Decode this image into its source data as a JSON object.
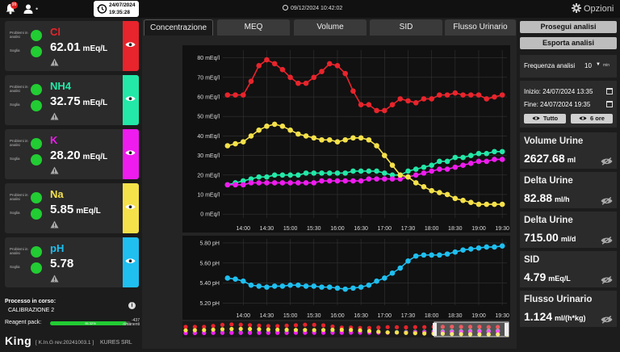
{
  "topbar": {
    "notification_count": "99",
    "user_dot": "•",
    "clock_date": "24/07/2024",
    "clock_time": "19:35:28",
    "center_datetime": "09/12/2024 10:42:02",
    "options_label": "Opzioni"
  },
  "ions": [
    {
      "name": "Cl",
      "value": "62.01",
      "unit": "mEq/L",
      "color": "#e8242c",
      "label_problems": "Problemi in analisi",
      "label_threshold": "Soglia"
    },
    {
      "name": "NH4",
      "value": "32.75",
      "unit": "mEq/L",
      "color": "#23e8a8",
      "label_problems": "Problemi in analisi",
      "label_threshold": "Soglia"
    },
    {
      "name": "K",
      "value": "28.20",
      "unit": "mEq/L",
      "color": "#ee1cee",
      "label_problems": "Problemi in analisi",
      "label_threshold": "Soglia"
    },
    {
      "name": "Na",
      "value": "5.85",
      "unit": "mEq/L",
      "color": "#f5e14a",
      "label_problems": "Problemi in analisi",
      "label_threshold": "Soglia"
    },
    {
      "name": "pH",
      "value": "5.78",
      "unit": "",
      "color": "#1fbff0",
      "label_problems": "Problemi in analisi",
      "label_threshold": "Soglia"
    }
  ],
  "process": {
    "title": "Processo in corso:",
    "value": "CALIBRAZIONE 2",
    "reagent_label": "Reagent pack:",
    "reagent_pct": "95.32%",
    "reagent_fraction": 0.9532,
    "reagent_remaining_num": "-437",
    "reagent_remaining_label": "rimanenti"
  },
  "footer": {
    "logo_main": "K",
    "logo_accent": "ing",
    "version": "[ K.In.G rev.20241003.1 ]",
    "company": "KURES SRL"
  },
  "tabs": [
    {
      "label": "Concentrazione",
      "active": true
    },
    {
      "label": "MEQ",
      "active": false
    },
    {
      "label": "Volume",
      "active": false
    },
    {
      "label": "SID",
      "active": false
    },
    {
      "label": "Flusso Urinario",
      "active": false
    }
  ],
  "right": {
    "btn_continue": "Prosegui analisi",
    "btn_export": "Esporta analisi",
    "freq_label": "Frequenza analisi",
    "freq_value": "10",
    "freq_unit": "min",
    "start_label": "Inizio:",
    "start_value": "24/07/2024 13:35",
    "end_label": "Fine:",
    "end_value": "24/07/2024 19:35",
    "btn_all": "Tutto",
    "btn_6h": "6 ore",
    "metrics": [
      {
        "title": "Volume Urine",
        "value": "2627.68",
        "unit": "ml"
      },
      {
        "title": "Delta Urine",
        "value": "82.88",
        "unit": "ml/h"
      },
      {
        "title": "Delta Urine",
        "value": "715.00",
        "unit": "ml/d"
      },
      {
        "title": "SID",
        "value": "4.79",
        "unit": "mEq/L"
      },
      {
        "title": "Flusso Urinario",
        "value": "1.124",
        "unit": "ml/(h*kg)"
      }
    ]
  },
  "chart_data": [
    {
      "type": "line",
      "x": [
        "13:40",
        "13:50",
        "14:00",
        "14:10",
        "14:20",
        "14:30",
        "14:40",
        "14:50",
        "15:00",
        "15:10",
        "15:20",
        "15:30",
        "15:40",
        "15:50",
        "16:00",
        "16:10",
        "16:20",
        "16:30",
        "16:40",
        "16:50",
        "17:00",
        "17:10",
        "17:20",
        "17:30",
        "17:40",
        "17:50",
        "18:00",
        "18:10",
        "18:20",
        "18:30",
        "18:40",
        "18:50",
        "19:00",
        "19:10",
        "19:20",
        "19:30"
      ],
      "x_ticks": [
        "14:00",
        "14:30",
        "15:00",
        "15:30",
        "16:00",
        "16:30",
        "17:00",
        "17:30",
        "18:00",
        "18:30",
        "19:00",
        "19:30"
      ],
      "y_ticks": [
        "0 mEq/l",
        "10 mEq/l",
        "20 mEq/l",
        "30 mEq/l",
        "40 mEq/l",
        "50 mEq/l",
        "60 mEq/l",
        "70 mEq/l",
        "80 mEq/l"
      ],
      "ylim": [
        -2,
        84
      ],
      "grid": true,
      "series": [
        {
          "name": "Cl",
          "color": "#e8242c",
          "values": [
            61,
            61,
            61,
            68,
            76,
            79,
            77,
            74,
            70,
            67,
            67,
            70,
            73,
            77,
            76,
            72,
            63,
            56,
            56,
            53,
            53,
            56,
            59,
            58,
            57,
            59,
            59,
            61,
            61,
            62,
            61,
            61,
            61,
            59,
            60,
            61
          ]
        },
        {
          "name": "NH4",
          "color": "#23e8a8",
          "values": [
            15,
            16,
            17,
            18,
            19,
            19,
            20,
            20,
            20,
            20,
            21,
            21,
            21,
            21,
            21,
            21,
            22,
            22,
            22,
            22,
            21,
            20,
            20,
            22,
            23,
            24,
            25,
            27,
            27,
            29,
            29,
            30,
            31,
            31,
            32,
            32
          ]
        },
        {
          "name": "K",
          "color": "#ee1cee",
          "values": [
            15,
            15,
            15,
            16,
            16,
            16,
            16,
            16,
            16,
            16,
            16,
            16,
            17,
            17,
            17,
            17,
            17,
            17,
            18,
            18,
            18,
            18,
            18,
            19,
            20,
            21,
            22,
            23,
            23,
            24,
            25,
            26,
            27,
            27,
            28,
            28
          ]
        },
        {
          "name": "Na",
          "color": "#f5e14a",
          "values": [
            35,
            36,
            37,
            40,
            43,
            45,
            46,
            45,
            43,
            41,
            40,
            39,
            38,
            38,
            37,
            38,
            39,
            39,
            38,
            35,
            30,
            25,
            20,
            19,
            16,
            14,
            12,
            11,
            10,
            8,
            7,
            6,
            5,
            5,
            5,
            5
          ]
        }
      ]
    },
    {
      "type": "line",
      "x": [
        "13:40",
        "13:50",
        "14:00",
        "14:10",
        "14:20",
        "14:30",
        "14:40",
        "14:50",
        "15:00",
        "15:10",
        "15:20",
        "15:30",
        "15:40",
        "15:50",
        "16:00",
        "16:10",
        "16:20",
        "16:30",
        "16:40",
        "16:50",
        "17:00",
        "17:10",
        "17:20",
        "17:30",
        "17:40",
        "17:50",
        "18:00",
        "18:10",
        "18:20",
        "18:30",
        "18:40",
        "18:50",
        "19:00",
        "19:10",
        "19:20",
        "19:30"
      ],
      "x_ticks": [
        "14:00",
        "14:30",
        "15:00",
        "15:30",
        "16:00",
        "16:30",
        "17:00",
        "17:30",
        "18:00",
        "18:30",
        "19:00",
        "19:30"
      ],
      "y_ticks": [
        "5.20 pH",
        "5.40 pH",
        "5.60 pH",
        "5.80 pH"
      ],
      "ylim": [
        5.18,
        5.84
      ],
      "grid": true,
      "series": [
        {
          "name": "pH",
          "color": "#1fbff0",
          "values": [
            5.45,
            5.44,
            5.42,
            5.38,
            5.37,
            5.36,
            5.37,
            5.37,
            5.38,
            5.38,
            5.37,
            5.37,
            5.36,
            5.36,
            5.35,
            5.34,
            5.35,
            5.36,
            5.38,
            5.42,
            5.45,
            5.5,
            5.55,
            5.62,
            5.67,
            5.68,
            5.68,
            5.68,
            5.69,
            5.71,
            5.73,
            5.74,
            5.75,
            5.76,
            5.76,
            5.77
          ]
        }
      ]
    }
  ]
}
